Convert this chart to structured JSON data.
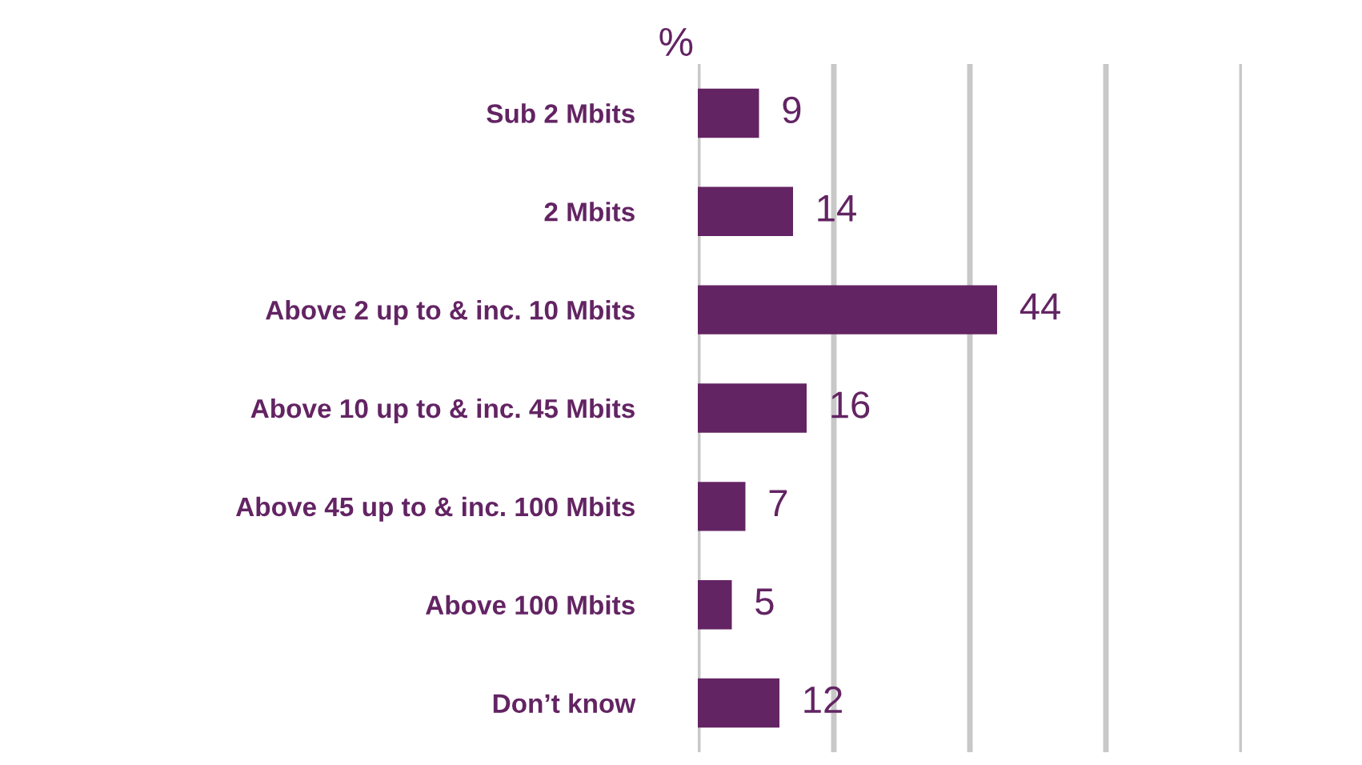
{
  "chart_data": {
    "type": "bar",
    "orientation": "horizontal",
    "xlabel": "%",
    "categories": [
      "Sub 2 Mbits",
      "2 Mbits",
      "Above 2 up to & inc. 10 Mbits",
      "Above 10 up to & inc. 45 Mbits",
      "Above 45 up to & inc. 100 Mbits",
      "Above 100 Mbits",
      "Don’t know"
    ],
    "values": [
      9,
      14,
      44,
      16,
      7,
      5,
      12
    ],
    "color": "#632463",
    "data_labels": true,
    "xlim": [
      0,
      80
    ],
    "xticks": [
      {
        "value": 0,
        "label": null
      },
      {
        "value": 20,
        "label": null
      },
      {
        "value": 40,
        "label": null
      },
      {
        "value": 60,
        "label": null
      },
      {
        "value": 80,
        "label": null
      }
    ],
    "grid": "x",
    "tick_labels": "y"
  }
}
